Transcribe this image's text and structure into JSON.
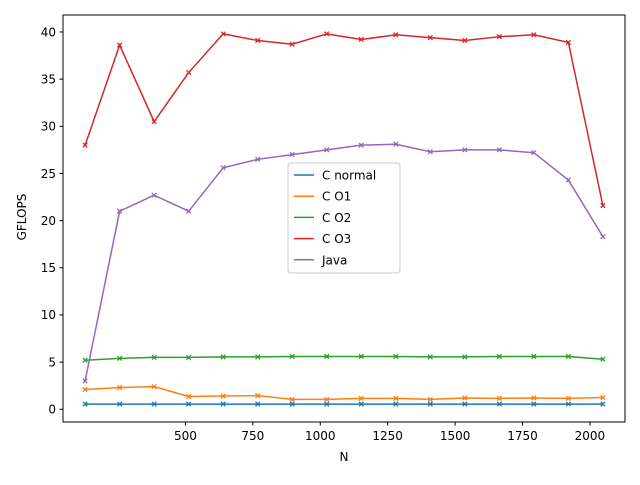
{
  "chart_data": {
    "type": "line",
    "xlabel": "N",
    "ylabel": "GFLOPS",
    "xlim": [
      46,
      2130
    ],
    "ylim": [
      -1.35,
      41.8
    ],
    "xticks": [
      500,
      750,
      1000,
      1250,
      1500,
      1750,
      2000
    ],
    "xtick_labels": [
      "500",
      "750",
      "1000",
      "1250",
      "1500",
      "1750",
      "2000"
    ],
    "yticks": [
      0,
      5,
      10,
      15,
      20,
      25,
      30,
      35,
      40
    ],
    "ytick_labels": [
      "0",
      "5",
      "10",
      "15",
      "20",
      "25",
      "30",
      "35",
      "40"
    ],
    "xtick_extra_labels": [],
    "x": [
      128,
      256,
      384,
      512,
      640,
      768,
      896,
      1024,
      1152,
      1280,
      1408,
      1536,
      1664,
      1792,
      1920,
      2048
    ],
    "grid": false,
    "legend_position": "center",
    "series": [
      {
        "name": "C normal",
        "color": "#1f77b4",
        "values": [
          0.55,
          0.55,
          0.55,
          0.55,
          0.55,
          0.55,
          0.55,
          0.55,
          0.55,
          0.55,
          0.55,
          0.55,
          0.55,
          0.55,
          0.55,
          0.55
        ]
      },
      {
        "name": "C O1",
        "color": "#ff7f0e",
        "values": [
          2.1,
          2.3,
          2.4,
          1.35,
          1.4,
          1.45,
          1.05,
          1.05,
          1.15,
          1.15,
          1.05,
          1.2,
          1.15,
          1.2,
          1.15,
          1.25
        ]
      },
      {
        "name": "C O2",
        "color": "#2ca02c",
        "values": [
          5.2,
          5.4,
          5.5,
          5.5,
          5.55,
          5.55,
          5.6,
          5.6,
          5.6,
          5.6,
          5.55,
          5.55,
          5.6,
          5.6,
          5.6,
          5.3
        ]
      },
      {
        "name": "C O3",
        "color": "#d62728",
        "values": [
          28.0,
          38.6,
          30.5,
          35.7,
          39.8,
          39.1,
          38.7,
          39.8,
          39.2,
          39.7,
          39.4,
          39.1,
          39.5,
          39.7,
          38.9,
          21.6
        ]
      },
      {
        "name": "Java",
        "color": "#9467bd",
        "values": [
          3.0,
          21.0,
          22.7,
          21.0,
          25.6,
          26.5,
          27.0,
          27.5,
          28.0,
          28.1,
          27.3,
          27.5,
          27.5,
          27.2,
          24.3,
          18.3
        ]
      }
    ]
  }
}
